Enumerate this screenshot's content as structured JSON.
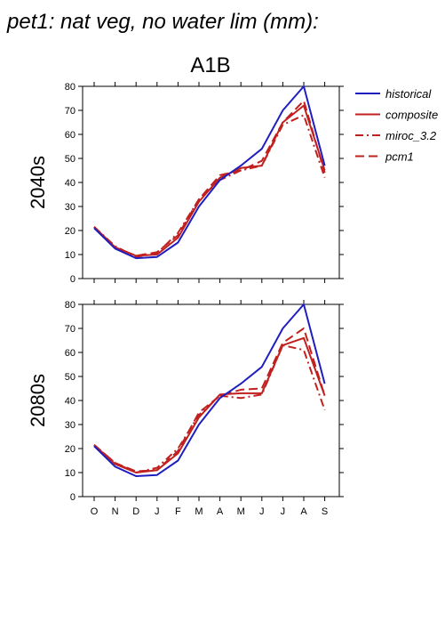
{
  "title": "pet1: nat veg, no water lim (mm):",
  "scenario": "A1B",
  "colors": {
    "historical": "#1f1fbf",
    "ensemble": "#c0201f"
  },
  "legend": [
    {
      "label": "historical",
      "style": "solid",
      "color": "#1f1fbf"
    },
    {
      "label": "composite",
      "style": "solid",
      "color": "#c0201f"
    },
    {
      "label": "miroc_3.2",
      "style": "dashdot",
      "color": "#c0201f"
    },
    {
      "label": "pcm1",
      "style": "dashed",
      "color": "#c0201f"
    }
  ],
  "chart_data": [
    {
      "type": "line",
      "period_label": "2040s",
      "categories": [
        "O",
        "N",
        "D",
        "J",
        "F",
        "M",
        "A",
        "M",
        "J",
        "J",
        "A",
        "S"
      ],
      "ylim": [
        0,
        80
      ],
      "yticks": [
        0,
        10,
        20,
        30,
        40,
        50,
        60,
        70,
        80
      ],
      "series": [
        {
          "name": "historical",
          "style": "solid",
          "color": "#1f1fbf",
          "values": [
            21,
            12.5,
            8.5,
            9,
            15,
            30,
            41,
            47,
            54,
            70,
            80,
            47
          ]
        },
        {
          "name": "composite",
          "style": "solid",
          "color": "#c0201f",
          "values": [
            21.5,
            13,
            9.5,
            10,
            17,
            32,
            42,
            46,
            47,
            65,
            72,
            45
          ]
        },
        {
          "name": "miroc_3.2",
          "style": "dashdot",
          "color": "#c0201f",
          "values": [
            21.5,
            13.5,
            9,
            10.5,
            19,
            33,
            41,
            45,
            47,
            64,
            68,
            42
          ]
        },
        {
          "name": "pcm1",
          "style": "dashed",
          "color": "#c0201f",
          "values": [
            21.5,
            13,
            9.5,
            11,
            18,
            33,
            43,
            45,
            49,
            65,
            74,
            44
          ]
        }
      ]
    },
    {
      "type": "line",
      "period_label": "2080s",
      "categories": [
        "O",
        "N",
        "D",
        "J",
        "F",
        "M",
        "A",
        "M",
        "J",
        "J",
        "A",
        "S"
      ],
      "ylim": [
        0,
        80
      ],
      "yticks": [
        0,
        10,
        20,
        30,
        40,
        50,
        60,
        70,
        80
      ],
      "series": [
        {
          "name": "historical",
          "style": "solid",
          "color": "#1f1fbf",
          "values": [
            21,
            12.5,
            8.5,
            9,
            15,
            30,
            41,
            47,
            54,
            70,
            80,
            47
          ]
        },
        {
          "name": "composite",
          "style": "solid",
          "color": "#c0201f",
          "values": [
            21.5,
            13.5,
            10,
            11,
            18,
            33,
            42.5,
            43,
            43,
            63,
            66,
            42
          ]
        },
        {
          "name": "miroc_3.2",
          "style": "dashdot",
          "color": "#c0201f",
          "values": [
            21.5,
            14,
            10,
            12,
            20,
            34,
            42,
            41,
            42.5,
            63,
            61,
            36
          ]
        },
        {
          "name": "pcm1",
          "style": "dashed",
          "color": "#c0201f",
          "values": [
            21.5,
            14,
            10.5,
            11,
            19,
            35,
            42,
            44.5,
            45,
            64,
            70,
            42
          ]
        }
      ]
    }
  ]
}
